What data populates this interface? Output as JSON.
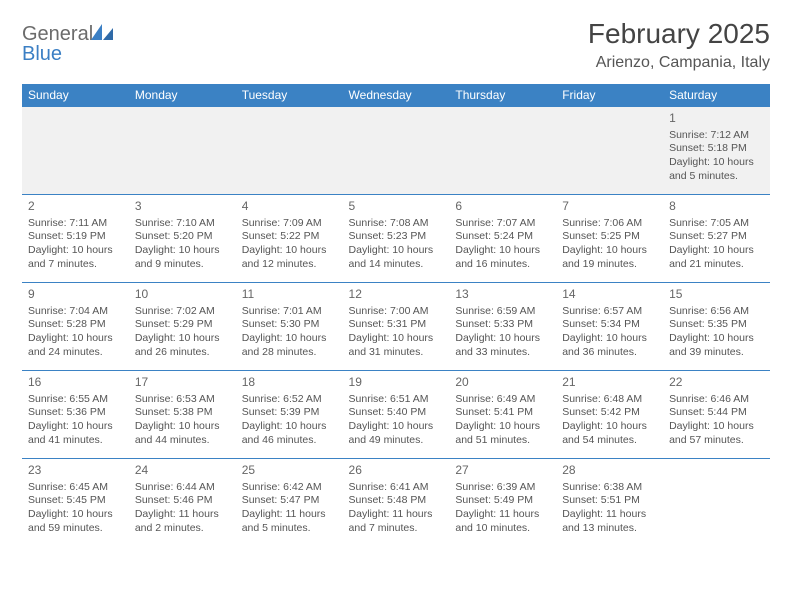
{
  "logo": {
    "word1": "General",
    "word2": "Blue"
  },
  "title": "February 2025",
  "location": "Arienzo, Campania, Italy",
  "colors": {
    "header_bg": "#3b82c4",
    "header_text": "#ffffff",
    "row_alt_bg": "#f1f1f1",
    "border": "#3b82c4",
    "text": "#555555",
    "logo_gray": "#6b6b6b",
    "logo_blue": "#3b7fc4"
  },
  "day_headers": [
    "Sunday",
    "Monday",
    "Tuesday",
    "Wednesday",
    "Thursday",
    "Friday",
    "Saturday"
  ],
  "weeks": [
    [
      null,
      null,
      null,
      null,
      null,
      null,
      {
        "n": "1",
        "sr": "Sunrise: 7:12 AM",
        "ss": "Sunset: 5:18 PM",
        "dl": "Daylight: 10 hours and 5 minutes."
      }
    ],
    [
      {
        "n": "2",
        "sr": "Sunrise: 7:11 AM",
        "ss": "Sunset: 5:19 PM",
        "dl": "Daylight: 10 hours and 7 minutes."
      },
      {
        "n": "3",
        "sr": "Sunrise: 7:10 AM",
        "ss": "Sunset: 5:20 PM",
        "dl": "Daylight: 10 hours and 9 minutes."
      },
      {
        "n": "4",
        "sr": "Sunrise: 7:09 AM",
        "ss": "Sunset: 5:22 PM",
        "dl": "Daylight: 10 hours and 12 minutes."
      },
      {
        "n": "5",
        "sr": "Sunrise: 7:08 AM",
        "ss": "Sunset: 5:23 PM",
        "dl": "Daylight: 10 hours and 14 minutes."
      },
      {
        "n": "6",
        "sr": "Sunrise: 7:07 AM",
        "ss": "Sunset: 5:24 PM",
        "dl": "Daylight: 10 hours and 16 minutes."
      },
      {
        "n": "7",
        "sr": "Sunrise: 7:06 AM",
        "ss": "Sunset: 5:25 PM",
        "dl": "Daylight: 10 hours and 19 minutes."
      },
      {
        "n": "8",
        "sr": "Sunrise: 7:05 AM",
        "ss": "Sunset: 5:27 PM",
        "dl": "Daylight: 10 hours and 21 minutes."
      }
    ],
    [
      {
        "n": "9",
        "sr": "Sunrise: 7:04 AM",
        "ss": "Sunset: 5:28 PM",
        "dl": "Daylight: 10 hours and 24 minutes."
      },
      {
        "n": "10",
        "sr": "Sunrise: 7:02 AM",
        "ss": "Sunset: 5:29 PM",
        "dl": "Daylight: 10 hours and 26 minutes."
      },
      {
        "n": "11",
        "sr": "Sunrise: 7:01 AM",
        "ss": "Sunset: 5:30 PM",
        "dl": "Daylight: 10 hours and 28 minutes."
      },
      {
        "n": "12",
        "sr": "Sunrise: 7:00 AM",
        "ss": "Sunset: 5:31 PM",
        "dl": "Daylight: 10 hours and 31 minutes."
      },
      {
        "n": "13",
        "sr": "Sunrise: 6:59 AM",
        "ss": "Sunset: 5:33 PM",
        "dl": "Daylight: 10 hours and 33 minutes."
      },
      {
        "n": "14",
        "sr": "Sunrise: 6:57 AM",
        "ss": "Sunset: 5:34 PM",
        "dl": "Daylight: 10 hours and 36 minutes."
      },
      {
        "n": "15",
        "sr": "Sunrise: 6:56 AM",
        "ss": "Sunset: 5:35 PM",
        "dl": "Daylight: 10 hours and 39 minutes."
      }
    ],
    [
      {
        "n": "16",
        "sr": "Sunrise: 6:55 AM",
        "ss": "Sunset: 5:36 PM",
        "dl": "Daylight: 10 hours and 41 minutes."
      },
      {
        "n": "17",
        "sr": "Sunrise: 6:53 AM",
        "ss": "Sunset: 5:38 PM",
        "dl": "Daylight: 10 hours and 44 minutes."
      },
      {
        "n": "18",
        "sr": "Sunrise: 6:52 AM",
        "ss": "Sunset: 5:39 PM",
        "dl": "Daylight: 10 hours and 46 minutes."
      },
      {
        "n": "19",
        "sr": "Sunrise: 6:51 AM",
        "ss": "Sunset: 5:40 PM",
        "dl": "Daylight: 10 hours and 49 minutes."
      },
      {
        "n": "20",
        "sr": "Sunrise: 6:49 AM",
        "ss": "Sunset: 5:41 PM",
        "dl": "Daylight: 10 hours and 51 minutes."
      },
      {
        "n": "21",
        "sr": "Sunrise: 6:48 AM",
        "ss": "Sunset: 5:42 PM",
        "dl": "Daylight: 10 hours and 54 minutes."
      },
      {
        "n": "22",
        "sr": "Sunrise: 6:46 AM",
        "ss": "Sunset: 5:44 PM",
        "dl": "Daylight: 10 hours and 57 minutes."
      }
    ],
    [
      {
        "n": "23",
        "sr": "Sunrise: 6:45 AM",
        "ss": "Sunset: 5:45 PM",
        "dl": "Daylight: 10 hours and 59 minutes."
      },
      {
        "n": "24",
        "sr": "Sunrise: 6:44 AM",
        "ss": "Sunset: 5:46 PM",
        "dl": "Daylight: 11 hours and 2 minutes."
      },
      {
        "n": "25",
        "sr": "Sunrise: 6:42 AM",
        "ss": "Sunset: 5:47 PM",
        "dl": "Daylight: 11 hours and 5 minutes."
      },
      {
        "n": "26",
        "sr": "Sunrise: 6:41 AM",
        "ss": "Sunset: 5:48 PM",
        "dl": "Daylight: 11 hours and 7 minutes."
      },
      {
        "n": "27",
        "sr": "Sunrise: 6:39 AM",
        "ss": "Sunset: 5:49 PM",
        "dl": "Daylight: 11 hours and 10 minutes."
      },
      {
        "n": "28",
        "sr": "Sunrise: 6:38 AM",
        "ss": "Sunset: 5:51 PM",
        "dl": "Daylight: 11 hours and 13 minutes."
      },
      null
    ]
  ]
}
